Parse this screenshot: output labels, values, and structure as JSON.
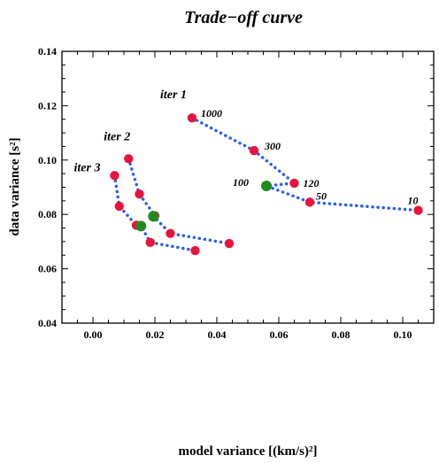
{
  "chart_data": {
    "type": "scatter",
    "title": "Trade−off curve",
    "xlabel": "model variance [(km/s)²]",
    "ylabel": "data variance [s²]",
    "xlim": [
      -0.01,
      0.11
    ],
    "ylim": [
      0.04,
      0.14
    ],
    "xticks": [
      0.0,
      0.02,
      0.04,
      0.06,
      0.08,
      0.1
    ],
    "xtick_labels": [
      "0.00",
      "0.02",
      "0.04",
      "0.06",
      "0.08",
      "0.10"
    ],
    "yticks": [
      0.04,
      0.06,
      0.08,
      0.1,
      0.12,
      0.14
    ],
    "ytick_labels": [
      "0.04",
      "0.06",
      "0.08",
      "0.10",
      "0.12",
      "0.14"
    ],
    "grid": false,
    "colors": {
      "curve": "#2a5ff0",
      "point": "#e8143c",
      "selected": "#1f8a1f",
      "text": "#000000"
    },
    "series": [
      {
        "name": "iter 1",
        "points": [
          {
            "x": 0.032,
            "y": 0.1155,
            "label": "1000"
          },
          {
            "x": 0.052,
            "y": 0.1035,
            "label": "300"
          },
          {
            "x": 0.065,
            "y": 0.0915,
            "label": "120"
          },
          {
            "x": 0.056,
            "y": 0.0905,
            "label": "100",
            "selected": true
          },
          {
            "x": 0.07,
            "y": 0.0845,
            "label": "50"
          },
          {
            "x": 0.105,
            "y": 0.0815,
            "label": "10"
          }
        ]
      },
      {
        "name": "iter 2",
        "points": [
          {
            "x": 0.0115,
            "y": 0.1005
          },
          {
            "x": 0.015,
            "y": 0.0875
          },
          {
            "x": 0.02,
            "y": 0.0795
          },
          {
            "x": 0.0195,
            "y": 0.0793,
            "selected": true
          },
          {
            "x": 0.025,
            "y": 0.073
          },
          {
            "x": 0.044,
            "y": 0.0693
          }
        ]
      },
      {
        "name": "iter 3",
        "points": [
          {
            "x": 0.007,
            "y": 0.0943
          },
          {
            "x": 0.0085,
            "y": 0.083
          },
          {
            "x": 0.014,
            "y": 0.076
          },
          {
            "x": 0.0155,
            "y": 0.0757,
            "selected": true
          },
          {
            "x": 0.0185,
            "y": 0.0697
          },
          {
            "x": 0.033,
            "y": 0.0667
          }
        ]
      }
    ]
  }
}
